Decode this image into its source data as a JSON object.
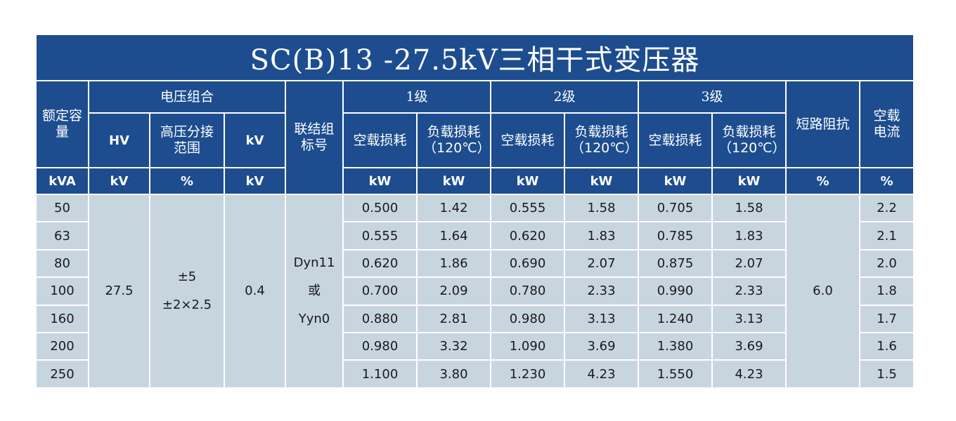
{
  "title": "SC(B)13 -27.5kV三相干式变压器",
  "headers": {
    "rated_capacity": "额定容量",
    "voltage_combo": "电压组合",
    "hv": "HV",
    "tap_range": "高压分接范围",
    "lv": "kV",
    "vector_group": "联结组标号",
    "grade1": "1级",
    "grade2": "2级",
    "grade3": "3级",
    "no_load_loss": "空载损耗",
    "load_loss": "负载损耗（120℃）",
    "impedance": "短路阻抗",
    "no_load_current": "空载电流"
  },
  "units": {
    "capacity": "kVA",
    "hv": "kV",
    "tap": "%",
    "lv": "kV",
    "g1_noload": "kW",
    "g1_load": "kW",
    "g2_noload": "kW",
    "g2_load": "kW",
    "g3_noload": "kW",
    "g3_load": "kW",
    "impedance": "%",
    "current": "%"
  },
  "merged": {
    "hv_value": "27.5",
    "tap_line1": "±5",
    "tap_line2": "±2×2.5",
    "lv_value": "0.4",
    "vector_line1": "Dyn11",
    "vector_line2": "或",
    "vector_line3": "Yyn0",
    "impedance_value": "6.0"
  },
  "rows": [
    {
      "capacity": "50",
      "g1_noload": "0.500",
      "g1_load": "1.42",
      "g2_noload": "0.555",
      "g2_load": "1.58",
      "g3_noload": "0.705",
      "g3_load": "1.58",
      "current": "2.2"
    },
    {
      "capacity": "63",
      "g1_noload": "0.555",
      "g1_load": "1.64",
      "g2_noload": "0.620",
      "g2_load": "1.83",
      "g3_noload": "0.785",
      "g3_load": "1.83",
      "current": "2.1"
    },
    {
      "capacity": "80",
      "g1_noload": "0.620",
      "g1_load": "1.86",
      "g2_noload": "0.690",
      "g2_load": "2.07",
      "g3_noload": "0.875",
      "g3_load": "2.07",
      "current": "2.0"
    },
    {
      "capacity": "100",
      "g1_noload": "0.700",
      "g1_load": "2.09",
      "g2_noload": "0.780",
      "g2_load": "2.33",
      "g3_noload": "0.990",
      "g3_load": "2.33",
      "current": "1.8"
    },
    {
      "capacity": "160",
      "g1_noload": "0.880",
      "g1_load": "2.81",
      "g2_noload": "0.980",
      "g2_load": "3.13",
      "g3_noload": "1.240",
      "g3_load": "3.13",
      "current": "1.7"
    },
    {
      "capacity": "200",
      "g1_noload": "0.980",
      "g1_load": "3.32",
      "g2_noload": "1.090",
      "g2_load": "3.69",
      "g3_noload": "1.380",
      "g3_load": "3.69",
      "current": "1.6"
    },
    {
      "capacity": "250",
      "g1_noload": "1.100",
      "g1_load": "3.80",
      "g2_noload": "1.230",
      "g2_load": "4.23",
      "g3_noload": "1.550",
      "g3_load": "4.23",
      "current": "1.5"
    }
  ],
  "colors": {
    "header_bg": "#1d4d8f",
    "cell_bg": "#c7d5df",
    "header_text": "#ffffff",
    "cell_text": "#1a1a1a"
  }
}
